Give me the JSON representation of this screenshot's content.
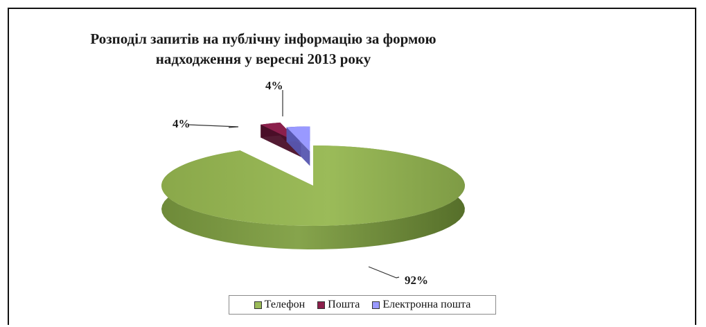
{
  "chart_data": {
    "type": "pie",
    "title": "Розподіл запитів на публічну інформацію за формою надходження у вересні 2013 року",
    "title_lines": [
      "Розподіл запитів на публічну інформацію за формою",
      "надходження у вересні 2013 року"
    ],
    "categories": [
      "Телефон",
      "Пошта",
      "Електронна пошта"
    ],
    "values": [
      92,
      4,
      4
    ],
    "data_labels": [
      "92%",
      "4%",
      "4%"
    ],
    "colors": [
      "#9bbb59",
      "#8b1f4b",
      "#9999ff"
    ],
    "legend_position": "bottom",
    "style": "3d-exploded"
  }
}
